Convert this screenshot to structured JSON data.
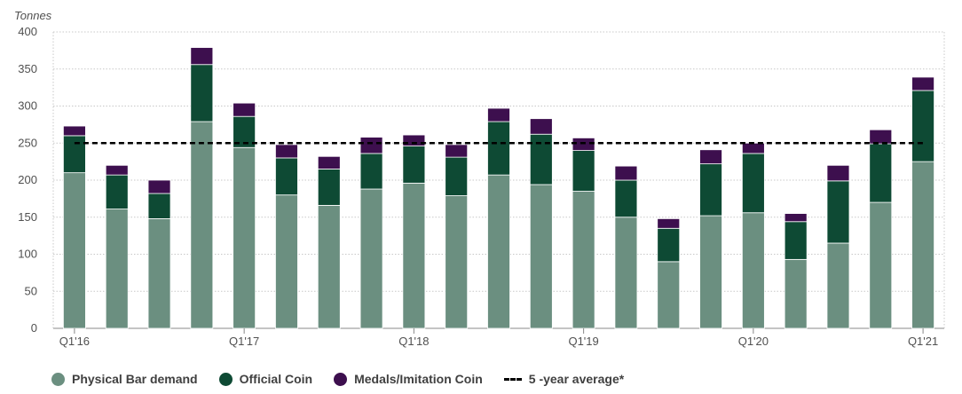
{
  "chart_data": {
    "type": "bar",
    "stacked": true,
    "ylabel": "Tonnes",
    "ylim": [
      0,
      400
    ],
    "yticks": [
      0,
      50,
      100,
      150,
      200,
      250,
      300,
      350,
      400
    ],
    "grid": true,
    "categories": [
      "Q1'16",
      "Q2'16",
      "Q3'16",
      "Q4'16",
      "Q1'17",
      "Q2'17",
      "Q3'17",
      "Q4'17",
      "Q1'18",
      "Q2'18",
      "Q3'18",
      "Q4'18",
      "Q1'19",
      "Q2'19",
      "Q3'19",
      "Q4'19",
      "Q1'20",
      "Q2'20",
      "Q3'20",
      "Q4'20",
      "Q1'21"
    ],
    "x_tick_labels": [
      "Q1'16",
      "Q1'17",
      "Q1'18",
      "Q1'19",
      "Q1'20",
      "Q1'21"
    ],
    "series": [
      {
        "name": "Physical Bar demand",
        "color": "#6b8f80",
        "values": [
          210,
          161,
          148,
          279,
          244,
          180,
          166,
          188,
          196,
          179,
          207,
          194,
          185,
          150,
          90,
          152,
          156,
          93,
          115,
          170,
          225
        ]
      },
      {
        "name": "Official Coin",
        "color": "#0e4a34",
        "values": [
          50,
          46,
          34,
          77,
          42,
          50,
          49,
          48,
          50,
          52,
          72,
          68,
          55,
          50,
          45,
          70,
          80,
          51,
          84,
          79,
          96
        ]
      },
      {
        "name": "Medals/Imitation Coin",
        "color": "#3d0f4e",
        "values": [
          13,
          13,
          18,
          23,
          18,
          18,
          17,
          22,
          15,
          17,
          18,
          21,
          17,
          19,
          13,
          19,
          14,
          11,
          21,
          19,
          18
        ]
      }
    ],
    "average": {
      "name": "5 -year average*",
      "value": 250,
      "style": "dashed",
      "color": "#000000"
    },
    "legend_position": "bottom"
  }
}
